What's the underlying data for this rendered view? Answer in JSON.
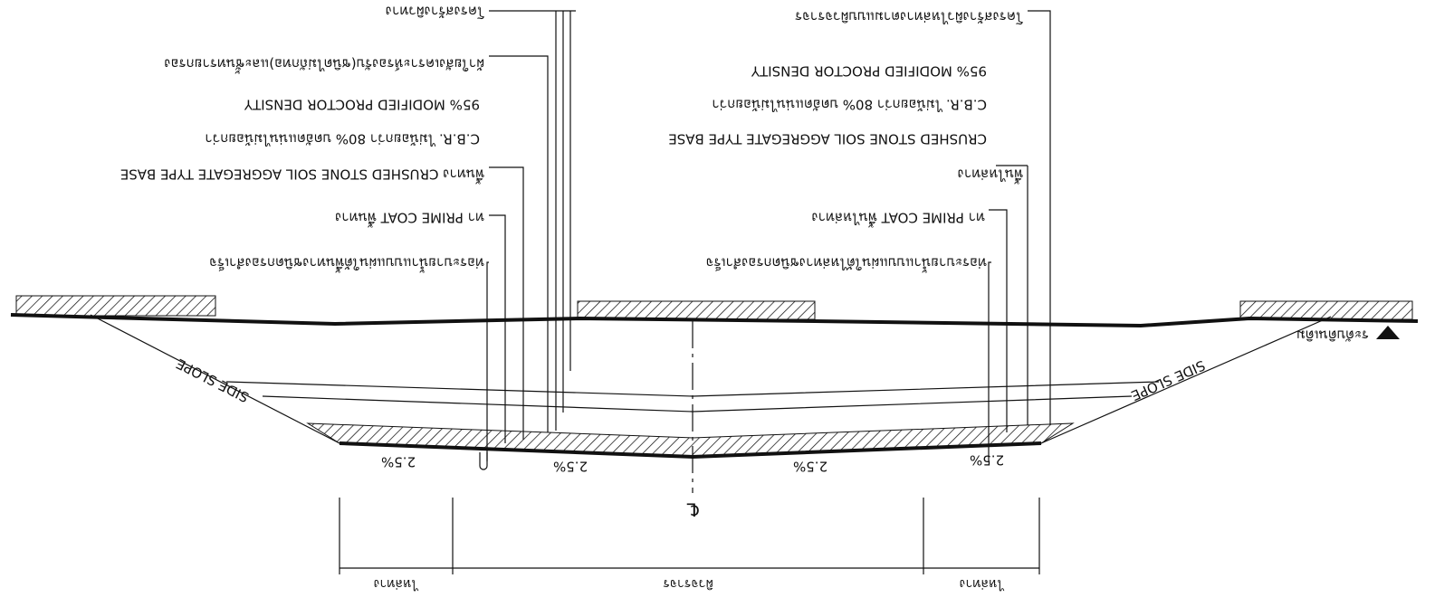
{
  "drawing": {
    "left_labels": [
      "ท่อระบายน้ำแบบแผ่นใต้พื้นทางชนิดกรองสำเร็จ",
      "ทา PRIME COAT พื้นทาง",
      "พื้นทาง CRUSHED STONE SOIL AGGREGATE TYPE BASE",
      "C.B.R. ไม่น้อยกว่า 80% บดอัดแน่นไม่น้อยกว่า",
      "95% MODIFIED PROCTOR DENSITY",
      "ผ้าใยสังเคราะห์รองรับ(ชนิดไม่ถักทอ)และชั้นทรายกรอง",
      "โครงสร้างผิวทาง"
    ],
    "right_labels": [
      "ท่อระบายน้ำแบบแผ่นใต้ไหล่ทางชนิดกรองสำเร็จ",
      "ทา PRIME COAT พื้นไหล่ทาง",
      "พื้นไหล่ทาง",
      "CRUSHED STONE SOIL AGGREGATE TYPE BASE",
      "C.B.R. ไม่น้อยกว่า 80% บดอัดแน่นไม่น้อยกว่า",
      "95% MODIFIED PROCTOR DENSITY",
      "โครงสร้างผิวไหล่ทางตามแบบผิวจราจร"
    ],
    "ground_label": "ระดับดินเดิม",
    "side_slope_left": "SIDE SLOPE",
    "side_slope_right": "SIDE SLOPE",
    "slopes": [
      "2.5%",
      "2.5%",
      "2.5%",
      "2.5%"
    ],
    "centerline": "℄",
    "dimensions": [
      "ไหล่ทาง",
      "ผิวจราจร",
      "ไหล่ทาง"
    ]
  }
}
